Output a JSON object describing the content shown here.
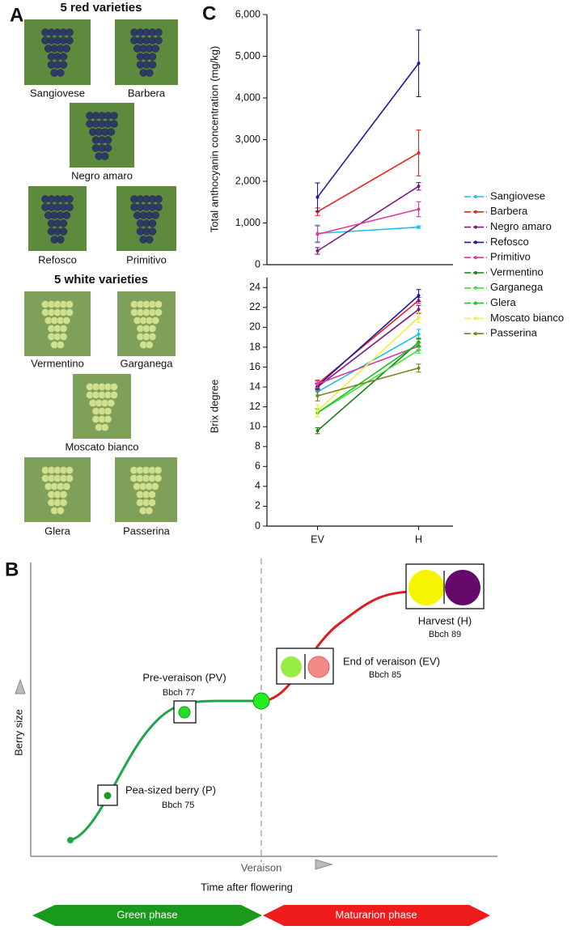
{
  "panel_labels": [
    "A",
    "C",
    "B"
  ],
  "panel_a": {
    "red_heading": "5 red varieties",
    "red": [
      "Sangiovese",
      "Barbera",
      "Negro amaro",
      "Refosco",
      "Primitivo"
    ],
    "white_heading": "5 white varieties",
    "white": [
      "Vermentino",
      "Garganega",
      "Moscato bianco",
      "Glera",
      "Passerina"
    ]
  },
  "chart_data": [
    {
      "type": "line",
      "y_label": "Total anthocyanin concentration (mg/kg)",
      "ylim": [
        0,
        6000
      ],
      "yticks": [
        0,
        {
          "value": 1000,
          "label": "1,000"
        },
        {
          "value": 2000,
          "label": "2,000"
        },
        {
          "value": 3000,
          "label": "3,000"
        },
        {
          "value": 4000,
          "label": "4,000"
        },
        {
          "value": 5000,
          "label": "5,000"
        },
        {
          "value": 6000,
          "label": "6,000"
        }
      ],
      "series": [
        {
          "values": [
            750,
            900
          ],
          "errors": [
            200,
            30
          ]
        },
        {
          "values": [
            1270,
            2680
          ],
          "errors": [
            90,
            550
          ]
        },
        {
          "values": [
            330,
            1880
          ],
          "errors": [
            80,
            90
          ]
        },
        {
          "values": [
            1620,
            4830
          ],
          "errors": [
            340,
            800
          ]
        },
        {
          "values": [
            730,
            1330
          ],
          "errors": [
            200,
            180
          ]
        }
      ]
    },
    {
      "type": "line",
      "y_label": "Brix degree",
      "categories": [
        "EV",
        "H"
      ],
      "ylim": [
        0,
        25
      ],
      "yticks": [
        0,
        2,
        4,
        6,
        8,
        10,
        12,
        14,
        16,
        18,
        20,
        22,
        24
      ],
      "series": [
        {
          "name": "Sangiovese",
          "color": "#1fbfef",
          "values": [
            13.5,
            19.3
          ],
          "errors": [
            0.3,
            0.5
          ]
        },
        {
          "name": "Barbera",
          "color": "#e8231f",
          "values": [
            14.3,
            22.7
          ],
          "errors": [
            0.3,
            0.3
          ]
        },
        {
          "name": "Negro amaro",
          "color": "#7b1a80",
          "values": [
            14.0,
            21.8
          ],
          "errors": [
            0.3,
            0.4
          ]
        },
        {
          "name": "Refosco",
          "color": "#1a1a9a",
          "values": [
            14.1,
            23.2
          ],
          "errors": [
            0.3,
            0.6
          ]
        },
        {
          "name": "Primitivo",
          "color": "#e0399a",
          "values": [
            14.3,
            18.1
          ],
          "errors": [
            0.4,
            0.4
          ]
        },
        {
          "name": "Vermentino",
          "color": "#1b7e1b",
          "values": [
            9.6,
            18.5
          ],
          "errors": [
            0.3,
            0.4
          ]
        },
        {
          "name": "Garganega",
          "color": "#3fdf3f",
          "values": [
            11.4,
            17.7
          ],
          "errors": [
            0.4,
            0.3
          ]
        },
        {
          "name": "Glera",
          "color": "#22c022",
          "values": [
            11.4,
            18.4
          ],
          "errors": [
            0.4,
            0.4
          ]
        },
        {
          "name": "Moscato bianco",
          "color": "#f0f03a",
          "values": [
            11.6,
            21.0
          ],
          "errors": [
            0.6,
            0.5
          ]
        },
        {
          "name": "Passerina",
          "color": "#808020",
          "values": [
            13.1,
            15.9
          ],
          "errors": [
            0.5,
            0.4
          ]
        }
      ]
    }
  ],
  "panel_b": {
    "y_label": "Berry size",
    "x_label": "Time after flowering",
    "veraison": "Veraison",
    "stages": [
      {
        "label": "Pea-sized berry (P)",
        "code": "Bbch 75"
      },
      {
        "label": "Pre-veraison (PV)",
        "code": "Bbch 77"
      },
      {
        "label": "End of veraison (EV)",
        "code": "Bbch 85"
      },
      {
        "label": "Harvest (H)",
        "code": "Bbch 89"
      }
    ],
    "phases": [
      "Green phase",
      "Maturarion phase"
    ]
  }
}
